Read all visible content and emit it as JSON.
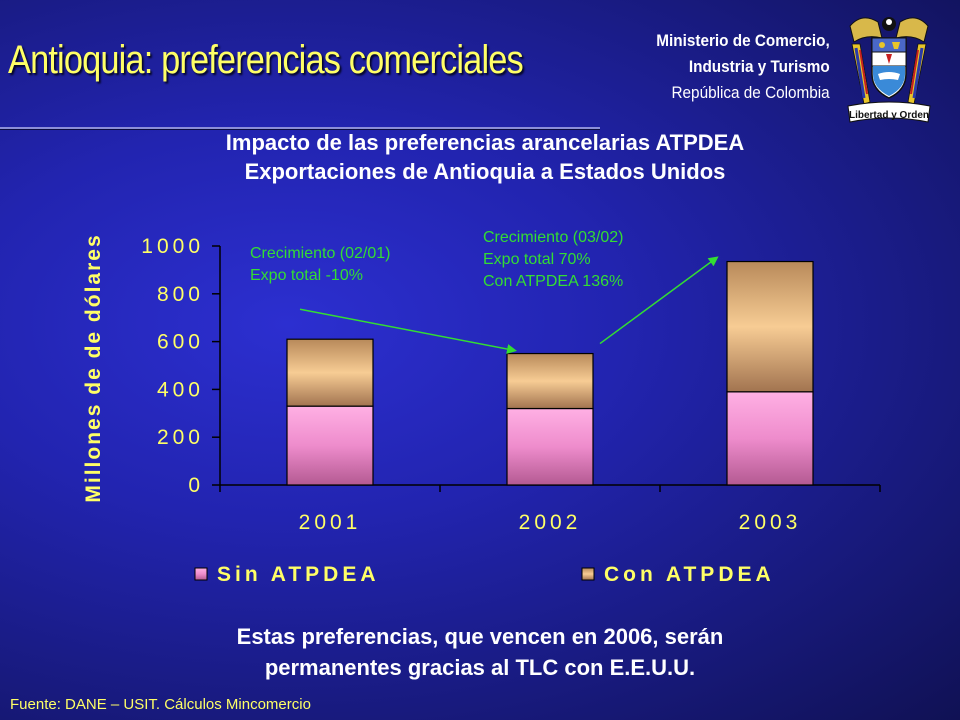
{
  "slide_title": "Antioquia: preferencias comerciales",
  "ministry": {
    "line1": "Ministerio de Comercio,",
    "line2": "Industria y Turismo",
    "line3": "República de Colombia"
  },
  "crest": {
    "motto": "Libertad y Orden",
    "icon": "coat-of-arms-icon"
  },
  "chart_title": {
    "line1": "Impacto de las preferencias arancelarias ATPDEA",
    "line2": "Exportaciones de Antioquia a Estados Unidos"
  },
  "chart_data": {
    "type": "bar",
    "stacked": true,
    "categories": [
      "2001",
      "2002",
      "2003"
    ],
    "series": [
      {
        "name": "Sin ATPDEA",
        "values": [
          330,
          320,
          390
        ],
        "color": "#f08cc8"
      },
      {
        "name": "Con ATPDEA",
        "values": [
          280,
          230,
          545
        ],
        "color": "#f0c890"
      }
    ],
    "ylabel": "Millones de de dólares",
    "xlabel": "",
    "ylim": [
      0,
      1000
    ],
    "yticks": [
      0,
      200,
      400,
      600,
      800,
      1000
    ],
    "ytick_labels": [
      "0",
      "200",
      "400",
      "600",
      "800",
      "1000"
    ],
    "grid": false,
    "legend_position": "bottom",
    "annotations": [
      {
        "lines": [
          "Crecimiento (02/01)",
          "Expo total -10%"
        ]
      },
      {
        "lines": [
          "Crecimiento (03/02)",
          "Expo total 70%",
          "Con ATPDEA 136%"
        ]
      }
    ]
  },
  "bottom_note": {
    "line1": "Estas preferencias, que vencen en 2006, serán",
    "line2": "permanentes gracias al TLC con E.E.U.U."
  },
  "source": "Fuente: DANE – USIT. Cálculos Mincomercio",
  "colors": {
    "title_yellow": "#ffff66",
    "annotation_green": "#33dd33",
    "background": "#2224b0"
  }
}
